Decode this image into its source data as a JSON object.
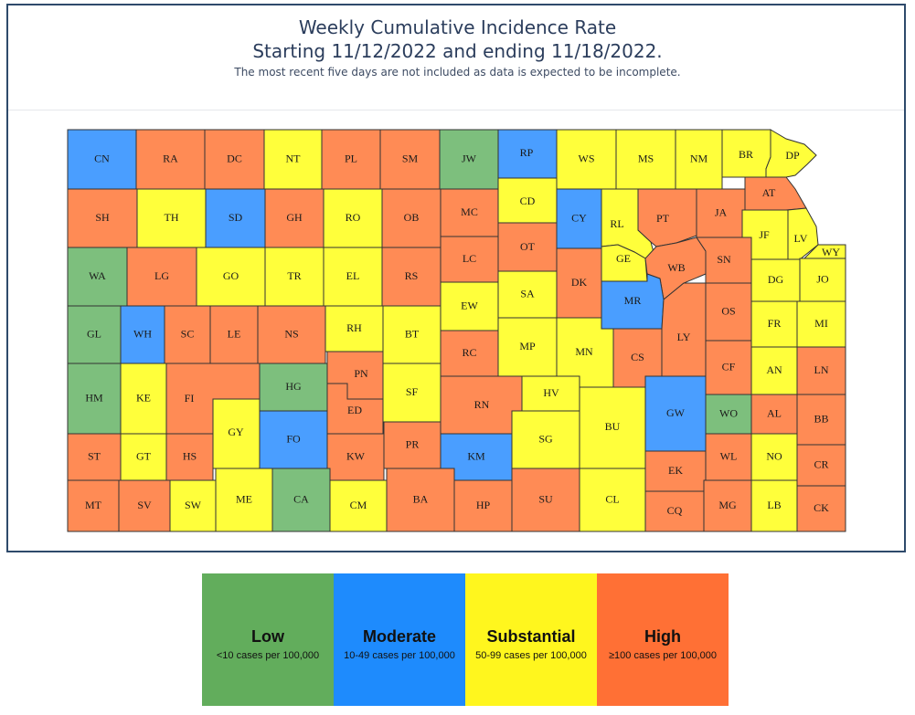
{
  "title_line1": "Weekly Cumulative Incidence Rate",
  "title_line2": "Starting 11/12/2022 and ending 11/18/2022.",
  "subtitle": "The most recent five days are not included as data is expected to be incomplete.",
  "colors": {
    "low": "#7dbf7d",
    "moderate": "#4a9eff",
    "substantial": "#ffff3b",
    "high": "#ff8b55"
  },
  "legend": [
    {
      "key": "low",
      "label": "Low",
      "range": "<10 cases per 100,000",
      "color": "#62ad5c"
    },
    {
      "key": "moderate",
      "label": "Moderate",
      "range": "10-49 cases per 100,000",
      "color": "#1e8bfd"
    },
    {
      "key": "substantial",
      "label": "Substantial",
      "range": "50-99 cases per 100,000",
      "color": "#fff61e"
    },
    {
      "key": "high",
      "label": "High",
      "range": "≥100 cases per 100,000",
      "color": "#ff7035"
    }
  ],
  "counties": [
    {
      "code": "CN",
      "level": "moderate"
    },
    {
      "code": "RA",
      "level": "high"
    },
    {
      "code": "DC",
      "level": "high"
    },
    {
      "code": "NT",
      "level": "substantial"
    },
    {
      "code": "PL",
      "level": "high"
    },
    {
      "code": "SM",
      "level": "high"
    },
    {
      "code": "JW",
      "level": "low"
    },
    {
      "code": "RP",
      "level": "moderate"
    },
    {
      "code": "WS",
      "level": "substantial"
    },
    {
      "code": "MS",
      "level": "substantial"
    },
    {
      "code": "NM",
      "level": "substantial"
    },
    {
      "code": "BR",
      "level": "substantial"
    },
    {
      "code": "DP",
      "level": "substantial"
    },
    {
      "code": "SH",
      "level": "high"
    },
    {
      "code": "TH",
      "level": "substantial"
    },
    {
      "code": "SD",
      "level": "moderate"
    },
    {
      "code": "GH",
      "level": "high"
    },
    {
      "code": "RO",
      "level": "substantial"
    },
    {
      "code": "OB",
      "level": "high"
    },
    {
      "code": "MC",
      "level": "high"
    },
    {
      "code": "CD",
      "level": "substantial"
    },
    {
      "code": "CY",
      "level": "moderate"
    },
    {
      "code": "RL",
      "level": "substantial"
    },
    {
      "code": "PT",
      "level": "high"
    },
    {
      "code": "JA",
      "level": "high"
    },
    {
      "code": "AT",
      "level": "high"
    },
    {
      "code": "JF",
      "level": "substantial"
    },
    {
      "code": "LV",
      "level": "substantial"
    },
    {
      "code": "WY",
      "level": "substantial"
    },
    {
      "code": "WA",
      "level": "low"
    },
    {
      "code": "LG",
      "level": "high"
    },
    {
      "code": "GO",
      "level": "substantial"
    },
    {
      "code": "TR",
      "level": "substantial"
    },
    {
      "code": "EL",
      "level": "substantial"
    },
    {
      "code": "RS",
      "level": "high"
    },
    {
      "code": "LC",
      "level": "high"
    },
    {
      "code": "OT",
      "level": "high"
    },
    {
      "code": "GE",
      "level": "substantial"
    },
    {
      "code": "WB",
      "level": "high"
    },
    {
      "code": "SN",
      "level": "high"
    },
    {
      "code": "DG",
      "level": "substantial"
    },
    {
      "code": "JO",
      "level": "substantial"
    },
    {
      "code": "EW",
      "level": "substantial"
    },
    {
      "code": "SA",
      "level": "substantial"
    },
    {
      "code": "DK",
      "level": "high"
    },
    {
      "code": "MR",
      "level": "moderate"
    },
    {
      "code": "OS",
      "level": "high"
    },
    {
      "code": "GL",
      "level": "low"
    },
    {
      "code": "WH",
      "level": "moderate"
    },
    {
      "code": "SC",
      "level": "high"
    },
    {
      "code": "LE",
      "level": "high"
    },
    {
      "code": "NS",
      "level": "high"
    },
    {
      "code": "RH",
      "level": "substantial"
    },
    {
      "code": "BT",
      "level": "substantial"
    },
    {
      "code": "RC",
      "level": "high"
    },
    {
      "code": "MP",
      "level": "substantial"
    },
    {
      "code": "MN",
      "level": "substantial"
    },
    {
      "code": "CS",
      "level": "high"
    },
    {
      "code": "LY",
      "level": "high"
    },
    {
      "code": "FR",
      "level": "substantial"
    },
    {
      "code": "MI",
      "level": "substantial"
    },
    {
      "code": "HM",
      "level": "low"
    },
    {
      "code": "KE",
      "level": "substantial"
    },
    {
      "code": "FI",
      "level": "high"
    },
    {
      "code": "HG",
      "level": "low"
    },
    {
      "code": "PN",
      "level": "high"
    },
    {
      "code": "SF",
      "level": "substantial"
    },
    {
      "code": "RN",
      "level": "high"
    },
    {
      "code": "HV",
      "level": "substantial"
    },
    {
      "code": "BU",
      "level": "substantial"
    },
    {
      "code": "GW",
      "level": "moderate"
    },
    {
      "code": "CF",
      "level": "high"
    },
    {
      "code": "AN",
      "level": "substantial"
    },
    {
      "code": "LN",
      "level": "high"
    },
    {
      "code": "ED",
      "level": "high"
    },
    {
      "code": "GY",
      "level": "substantial"
    },
    {
      "code": "WO",
      "level": "low"
    },
    {
      "code": "AL",
      "level": "high"
    },
    {
      "code": "BB",
      "level": "high"
    },
    {
      "code": "ST",
      "level": "high"
    },
    {
      "code": "GT",
      "level": "substantial"
    },
    {
      "code": "HS",
      "level": "high"
    },
    {
      "code": "FO",
      "level": "moderate"
    },
    {
      "code": "KW",
      "level": "high"
    },
    {
      "code": "PR",
      "level": "high"
    },
    {
      "code": "KM",
      "level": "moderate"
    },
    {
      "code": "SG",
      "level": "substantial"
    },
    {
      "code": "WL",
      "level": "high"
    },
    {
      "code": "NO",
      "level": "substantial"
    },
    {
      "code": "CR",
      "level": "high"
    },
    {
      "code": "EK",
      "level": "high"
    },
    {
      "code": "MT",
      "level": "high"
    },
    {
      "code": "SV",
      "level": "high"
    },
    {
      "code": "SW",
      "level": "substantial"
    },
    {
      "code": "ME",
      "level": "substantial"
    },
    {
      "code": "CA",
      "level": "low"
    },
    {
      "code": "CM",
      "level": "substantial"
    },
    {
      "code": "BA",
      "level": "high"
    },
    {
      "code": "HP",
      "level": "high"
    },
    {
      "code": "SU",
      "level": "high"
    },
    {
      "code": "CL",
      "level": "substantial"
    },
    {
      "code": "CQ",
      "level": "high"
    },
    {
      "code": "MG",
      "level": "high"
    },
    {
      "code": "LB",
      "level": "substantial"
    },
    {
      "code": "CK",
      "level": "high"
    }
  ]
}
